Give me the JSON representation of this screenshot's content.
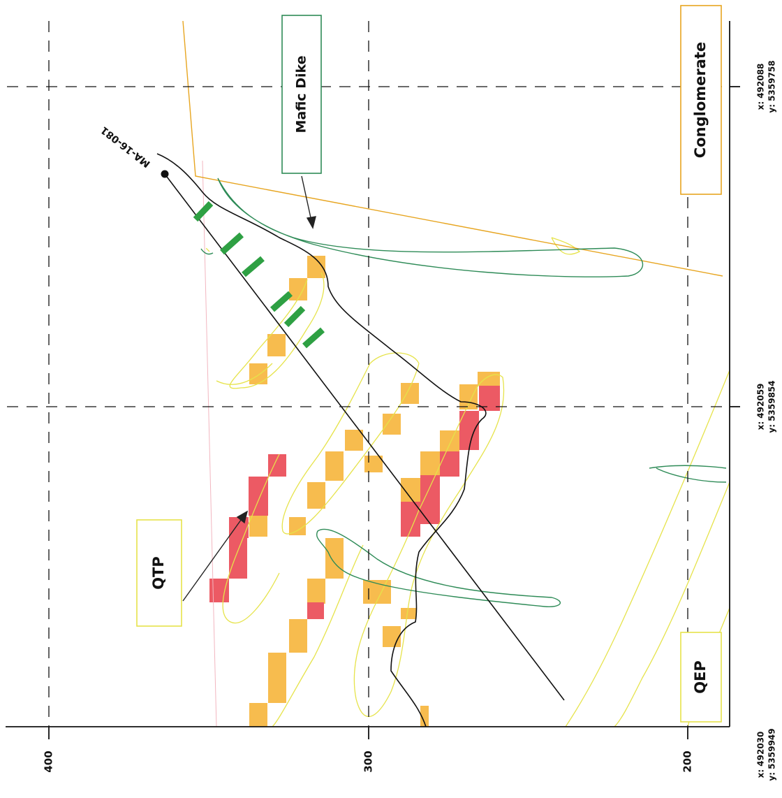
{
  "drillhole": {
    "label": "MA-16-081"
  },
  "units": {
    "mafic_dike": "Mafic Dike",
    "conglomerate": "Conglomerate",
    "qtp": "QTP",
    "qep": "QEP"
  },
  "elevation_ticks": [
    "400",
    "300",
    "200"
  ],
  "coordinates": [
    {
      "x": "x: 492088",
      "y": "y: 5359758"
    },
    {
      "x": "x: 492059",
      "y": "y: 5359854"
    },
    {
      "x": "x: 492030",
      "y": "y: 5359949"
    }
  ],
  "colors": {
    "low_grade": "#f7bc4e",
    "high_grade": "#ec5a64",
    "dike_green": "#2e8b57",
    "contact_yellow": "#e6e34a",
    "conglomerate_orange": "#e7a520",
    "marker_green": "#2ea043"
  }
}
